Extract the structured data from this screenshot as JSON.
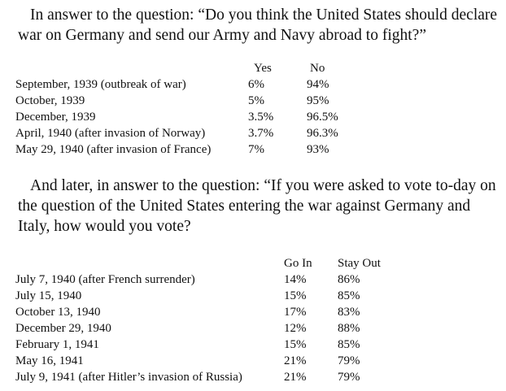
{
  "section1": {
    "question": "In answer to the question: “Do you think the United States should declare war on Germany and send our Army and Navy abroad to fight?”",
    "headers": [
      "Yes",
      "No"
    ],
    "rows": [
      {
        "label": "September, 1939 (outbreak of war)",
        "a": "6%",
        "b": "94%"
      },
      {
        "label": "October, 1939",
        "a": "5%",
        "b": "95%"
      },
      {
        "label": "December, 1939",
        "a": "3.5%",
        "b": "96.5%"
      },
      {
        "label": "April, 1940 (after invasion of Norway)",
        "a": "3.7%",
        "b": "96.3%"
      },
      {
        "label": "May 29, 1940 (after invasion of France)",
        "a": "7%",
        "b": "93%"
      }
    ]
  },
  "section2": {
    "question": "And later, in answer to the question: “If you were asked to vote to-day on the question of the United States entering the war against Germany and Italy, how would you vote?",
    "headers": [
      "Go In",
      "Stay Out"
    ],
    "rows": [
      {
        "label": "July 7, 1940 (after French surrender)",
        "a": "14%",
        "b": "86%"
      },
      {
        "label": "July 15, 1940",
        "a": "15%",
        "b": "85%"
      },
      {
        "label": "October 13, 1940",
        "a": "17%",
        "b": "83%"
      },
      {
        "label": "December 29, 1940",
        "a": "12%",
        "b": "88%"
      },
      {
        "label": "February 1, 1941",
        "a": "15%",
        "b": "85%"
      },
      {
        "label": "May 16, 1941",
        "a": "21%",
        "b": "79%"
      },
      {
        "label": "July 9, 1941 (after Hitler’s invasion of Russia)",
        "a": "21%",
        "b": "79%"
      }
    ]
  }
}
